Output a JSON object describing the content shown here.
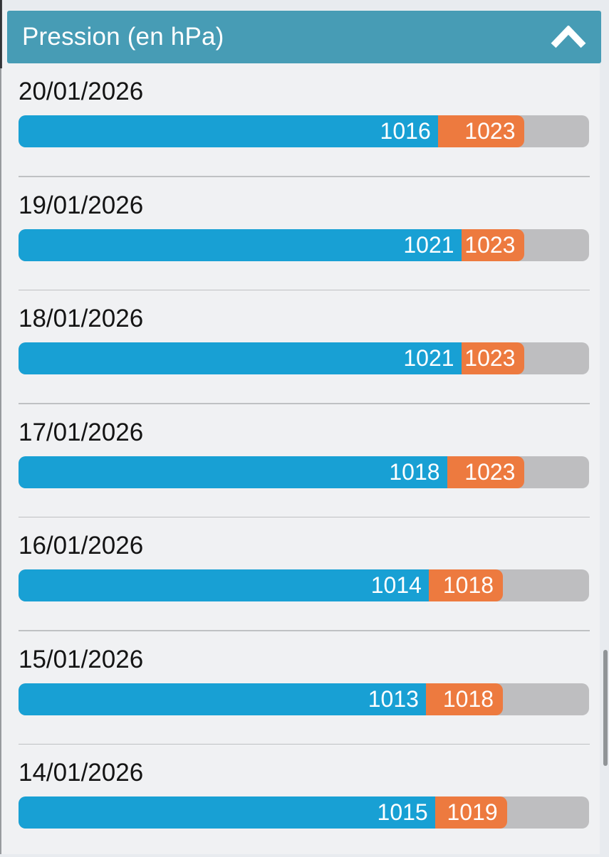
{
  "header": {
    "title": "Pression (en hPa)",
    "collapse_icon": "chevron-up-icon",
    "expanded": true
  },
  "colors": {
    "page_bg": "#e8ebef",
    "card_bg": "#f0f1f3",
    "header_bg": "#479cb5",
    "bar_low": "#18a0d4",
    "bar_high": "#ed7a3f",
    "bar_track": "#bebec0",
    "label_text": "#ffffff",
    "date_text": "#141414"
  },
  "chart_data": {
    "type": "bar",
    "orientation": "horizontal-stacked",
    "title": "Pression (en hPa)",
    "unit": "hPa",
    "legend": "none",
    "series_semantics": [
      "low pressure (blue)",
      "high pressure (orange)"
    ],
    "rows": [
      {
        "date": "20/01/2026",
        "low": 1016,
        "high": 1023,
        "low_frac": 0.735,
        "high_frac": 0.152
      },
      {
        "date": "19/01/2026",
        "low": 1021,
        "high": 1023,
        "low_frac": 0.776,
        "high_frac": 0.111
      },
      {
        "date": "18/01/2026",
        "low": 1021,
        "high": 1023,
        "low_frac": 0.776,
        "high_frac": 0.111
      },
      {
        "date": "17/01/2026",
        "low": 1018,
        "high": 1023,
        "low_frac": 0.751,
        "high_frac": 0.136
      },
      {
        "date": "16/01/2026",
        "low": 1014,
        "high": 1018,
        "low_frac": 0.719,
        "high_frac": 0.13
      },
      {
        "date": "15/01/2026",
        "low": 1013,
        "high": 1018,
        "low_frac": 0.714,
        "high_frac": 0.135
      },
      {
        "date": "14/01/2026",
        "low": 1015,
        "high": 1019,
        "low_frac": 0.73,
        "high_frac": 0.126
      }
    ]
  },
  "scrollbar": {
    "visible": true
  }
}
